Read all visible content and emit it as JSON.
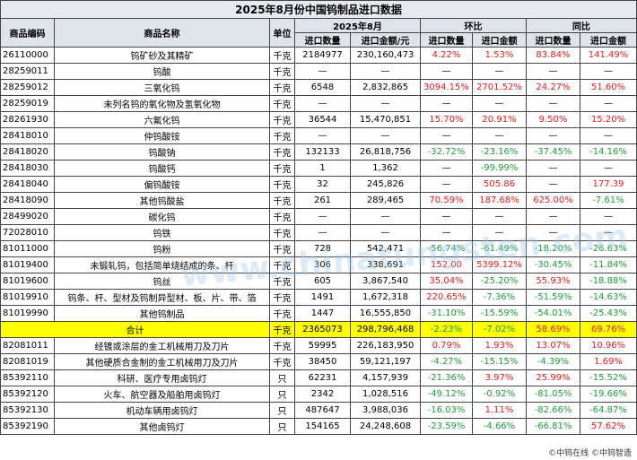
{
  "title": "2025年8月份中国钨制品进口数据",
  "header": {
    "code": "商品编码",
    "name": "商品名称",
    "unit": "单位",
    "period": "2025年8月",
    "mom": "环比",
    "yoy": "同比",
    "sub": [
      "进口数量",
      "进口金额/元",
      "进口数量",
      "进口金额",
      "进口数量",
      "进口金额"
    ]
  },
  "table": {
    "rows": [
      [
        "26110000",
        "钨矿砂及其精矿",
        "千克",
        "2184977",
        "230,160,473",
        "4.22%",
        "1.53%",
        "83.84%",
        "141.49%"
      ],
      [
        "28259011",
        "钨酸",
        "千克",
        "—",
        "—",
        "—",
        "—",
        "—",
        "—"
      ],
      [
        "28259012",
        "三氧化钨",
        "千克",
        "6548",
        "2,832,865",
        "3094.15%",
        "2701.52%",
        "24.27%",
        "51.60%"
      ],
      [
        "28259019",
        "未列名钨的氧化物及氢氧化物",
        "千克",
        "—",
        "—",
        "—",
        "—",
        "—",
        "—"
      ],
      [
        "28261930",
        "六氟化钨",
        "千克",
        "36544",
        "15,470,851",
        "15.70%",
        "20.91%",
        "9.50%",
        "15.20%"
      ],
      [
        "28418010",
        "仲钨酸铵",
        "千克",
        "—",
        "—",
        "—",
        "—",
        "—",
        "—"
      ],
      [
        "28418020",
        "钨酸钠",
        "千克",
        "132133",
        "26,818,756",
        "-32.72%",
        "-23.16%",
        "-37.45%",
        "-14.16%"
      ],
      [
        "28418030",
        "钨酸钙",
        "千克",
        "1",
        "1,362",
        "—",
        "-99.99%",
        "—",
        "—"
      ],
      [
        "28418040",
        "偏钨酸铵",
        "千克",
        "32",
        "245,826",
        "—",
        "505.86",
        "—",
        "177.39"
      ],
      [
        "28418090",
        "其他钨酸盐",
        "千克",
        "261",
        "289,465",
        "70.59%",
        "187.68%",
        "625.00%",
        "-7.61%"
      ],
      [
        "28499020",
        "碳化钨",
        "千克",
        "—",
        "—",
        "—",
        "—",
        "—",
        "—"
      ],
      [
        "72028010",
        "钨铁",
        "千克",
        "—",
        "—",
        "—",
        "—",
        "—",
        "—"
      ],
      [
        "81011000",
        "钨粉",
        "千克",
        "728",
        "542,471",
        "-56.74%",
        "-61.49%",
        "-18.20%",
        "-26.63%"
      ],
      [
        "81019400",
        "未锻轧钨，包括简单烧结成的条、杆",
        "千克",
        "306",
        "338,691",
        "152.00",
        "5399.12%",
        "-30.45%",
        "-11.84%"
      ],
      [
        "81019600",
        "钨丝",
        "千克",
        "605",
        "3,867,540",
        "35.04%",
        "-25.20%",
        "55.93%",
        "-18.88%"
      ],
      [
        "81019910",
        "钨条、杆、型材及钨制异型材、板、片、带、箔",
        "千克",
        "1491",
        "1,672,318",
        "220.65%",
        "-7.36%",
        "-51.59%",
        "-14.63%"
      ],
      [
        "81019990",
        "其他钨制品",
        "千克",
        "1447",
        "16,555,850",
        "-31.10%",
        "-15.59%",
        "-54.01%",
        "-25.43%"
      ]
    ],
    "total": [
      "合计",
      "千克",
      "2365073",
      "298,796,468",
      "-2.23%",
      "-7.02%",
      "58.69%",
      "69.76%"
    ],
    "rows_after": [
      [
        "82081011",
        "经镀或涂层的金工机械用刀及刀片",
        "千克",
        "59995",
        "226,183,950",
        "0.79%",
        "1.93%",
        "13.07%",
        "10.96%"
      ],
      [
        "82081019",
        "其他硬质合金制的金工机械用刀及刀片",
        "千克",
        "38450",
        "59,121,197",
        "-4.27%",
        "-15.15%",
        "-4.39%",
        "1.69%"
      ],
      [
        "85392110",
        "科研、医疗专用卤钨灯",
        "只",
        "62231",
        "4,157,939",
        "-21.36%",
        "3.97%",
        "25.99%",
        "-15.52%"
      ],
      [
        "85392120",
        "火车、航空器及船舶用卤钨灯",
        "只",
        "2342",
        "1,028,516",
        "-49.12%",
        "-0.92%",
        "-81.05%",
        "-19.66%"
      ],
      [
        "85392130",
        "机动车辆用卤钨灯",
        "只",
        "487647",
        "3,988,036",
        "-16.03%",
        "1.11%",
        "-82.66%",
        "-64.87%"
      ],
      [
        "85392190",
        "其他卤钨灯",
        "只",
        "154165",
        "24,248,608",
        "-23.59%",
        "-4.66%",
        "-66.81%",
        "57.62%"
      ]
    ]
  },
  "watermark": "www.chinatungsten.com",
  "footer": "©中钨在线 ©中钨智造"
}
